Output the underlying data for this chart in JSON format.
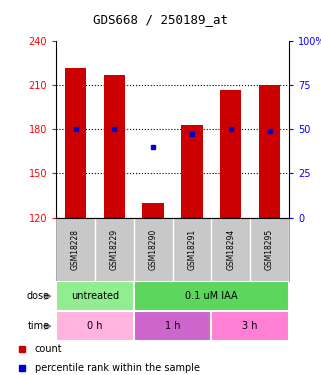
{
  "title": "GDS668 / 250189_at",
  "samples": [
    "GSM18228",
    "GSM18229",
    "GSM18290",
    "GSM18291",
    "GSM18294",
    "GSM18295"
  ],
  "bar_heights": [
    222,
    217,
    130,
    183,
    207,
    210
  ],
  "bar_bottom": 120,
  "percentile_values": [
    180,
    180,
    168,
    177,
    180,
    179
  ],
  "ylim": [
    120,
    240
  ],
  "yticks_left": [
    120,
    150,
    180,
    210,
    240
  ],
  "yticks_right_labels": [
    "0",
    "25",
    "50",
    "75",
    "100%"
  ],
  "bar_color": "#cc0000",
  "percentile_color": "#0000cc",
  "dose_labels": [
    {
      "label": "untreated",
      "span": [
        0,
        2
      ],
      "color": "#90ee90"
    },
    {
      "label": "0.1 uM IAA",
      "span": [
        2,
        6
      ],
      "color": "#5cd65c"
    }
  ],
  "time_labels": [
    {
      "label": "0 h",
      "span": [
        0,
        2
      ],
      "color": "#ffb3de"
    },
    {
      "label": "1 h",
      "span": [
        2,
        4
      ],
      "color": "#cc66cc"
    },
    {
      "label": "3 h",
      "span": [
        4,
        6
      ],
      "color": "#ff80d5"
    }
  ],
  "dose_row_label": "dose",
  "time_row_label": "time",
  "legend_count_color": "#cc0000",
  "legend_percentile_color": "#0000cc",
  "sample_bg_color": "#c8c8c8",
  "grid_color": "black"
}
